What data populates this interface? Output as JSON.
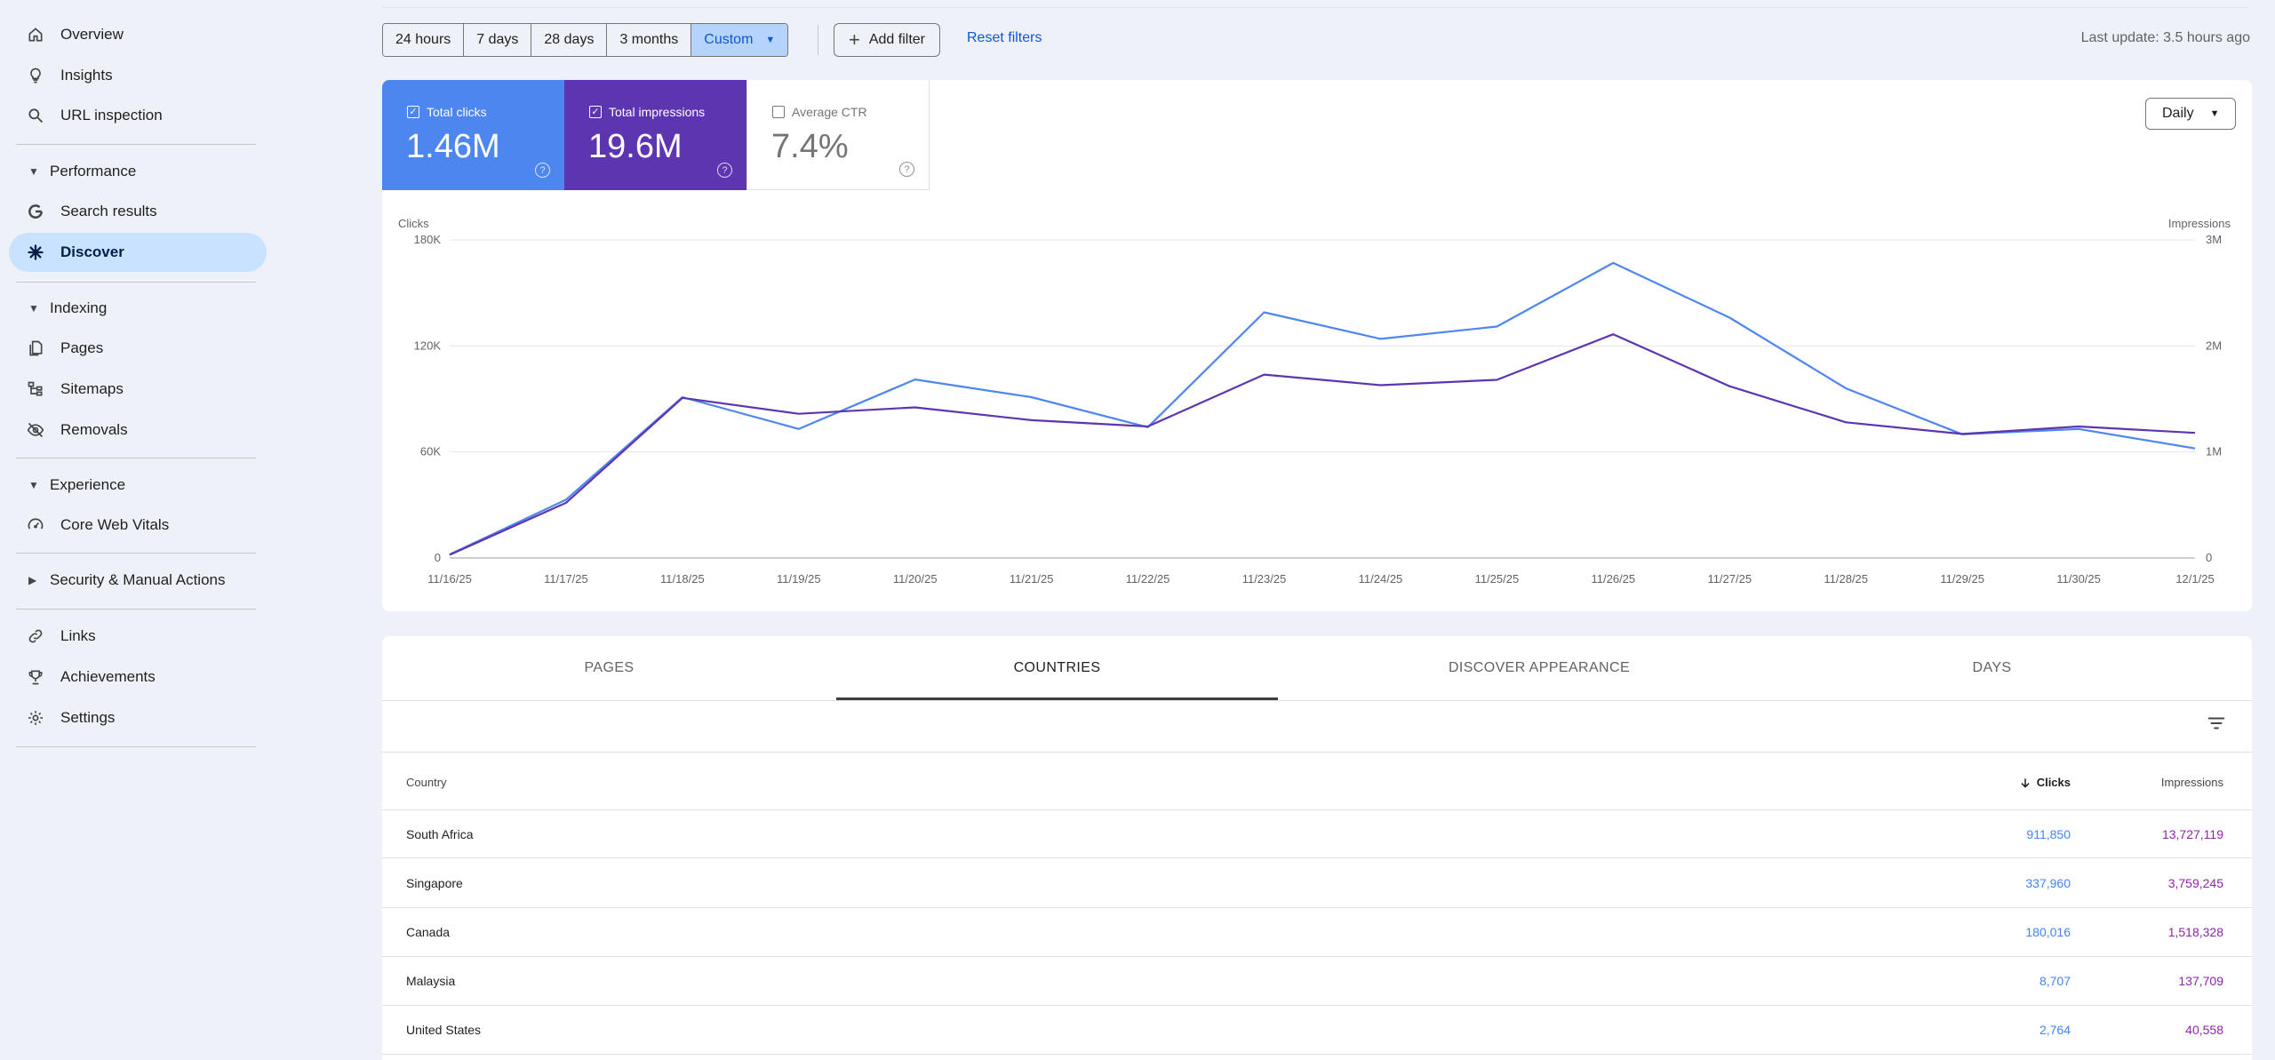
{
  "sidebar": {
    "items": [
      {
        "label": "Overview",
        "icon": "home-icon"
      },
      {
        "label": "Insights",
        "icon": "lightbulb-icon"
      },
      {
        "label": "URL inspection",
        "icon": "search-icon"
      }
    ],
    "performance": {
      "label": "Performance",
      "items": [
        {
          "label": "Search results",
          "icon": "google-g-icon"
        },
        {
          "label": "Discover",
          "icon": "asterisk-icon",
          "active": true
        }
      ]
    },
    "indexing": {
      "label": "Indexing",
      "items": [
        {
          "label": "Pages",
          "icon": "pages-icon"
        },
        {
          "label": "Sitemaps",
          "icon": "sitemap-icon"
        },
        {
          "label": "Removals",
          "icon": "eye-off-icon"
        }
      ]
    },
    "experience": {
      "label": "Experience",
      "items": [
        {
          "label": "Core Web Vitals",
          "icon": "gauge-icon"
        }
      ]
    },
    "security": {
      "label": "Security & Manual Actions"
    },
    "bottom": [
      {
        "label": "Links",
        "icon": "link-icon"
      },
      {
        "label": "Achievements",
        "icon": "trophy-icon"
      },
      {
        "label": "Settings",
        "icon": "gear-icon"
      }
    ]
  },
  "toolbar": {
    "ranges": [
      "24 hours",
      "7 days",
      "28 days",
      "3 months",
      "Custom"
    ],
    "selected_range": "Custom",
    "add_filter": "Add filter",
    "reset_filters": "Reset filters",
    "last_update": "Last update: 3.5 hours ago"
  },
  "metrics": {
    "clicks": {
      "label": "Total clicks",
      "value": "1.46M",
      "checked": true,
      "color": "#4e86f0"
    },
    "impressions": {
      "label": "Total impressions",
      "value": "19.6M",
      "checked": true,
      "color": "#5e35b1"
    },
    "ctr": {
      "label": "Average CTR",
      "value": "7.4%",
      "checked": false
    }
  },
  "granularity": "Daily",
  "chart_data": {
    "type": "line",
    "x": [
      "11/16/25",
      "11/17/25",
      "11/18/25",
      "11/19/25",
      "11/20/25",
      "11/21/25",
      "11/22/25",
      "11/23/25",
      "11/24/25",
      "11/25/25",
      "11/26/25",
      "11/27/25",
      "11/28/25",
      "11/29/25",
      "11/30/25",
      "12/1/25"
    ],
    "ylabel_left": "Clicks",
    "ylabel_right": "Impressions",
    "y_left_ticks": [
      "0",
      "60K",
      "120K",
      "180K"
    ],
    "y_right_ticks": [
      "0",
      "1M",
      "2M",
      "3M"
    ],
    "ylim_left": [
      0,
      180000
    ],
    "ylim_right": [
      0,
      3000000
    ],
    "grid": true,
    "series": [
      {
        "name": "Total clicks",
        "axis": "left",
        "color": "#4e86f0",
        "values": [
          2000,
          33000,
          91000,
          73000,
          101000,
          91000,
          74000,
          139000,
          124000,
          131000,
          167000,
          136000,
          96000,
          70000,
          73000,
          62000
        ]
      },
      {
        "name": "Total impressions",
        "axis": "right",
        "color": "#5e35b1",
        "values": [
          30000,
          520000,
          1510000,
          1360000,
          1420000,
          1300000,
          1240000,
          1730000,
          1630000,
          1680000,
          2110000,
          1620000,
          1280000,
          1170000,
          1240000,
          1180000
        ]
      }
    ]
  },
  "tabs": [
    "PAGES",
    "COUNTRIES",
    "DISCOVER APPEARANCE",
    "DAYS"
  ],
  "active_tab": "COUNTRIES",
  "table": {
    "headers": {
      "country": "Country",
      "clicks": "Clicks",
      "impressions": "Impressions"
    },
    "rows": [
      {
        "country": "South Africa",
        "clicks": "911,850",
        "impressions": "13,727,119"
      },
      {
        "country": "Singapore",
        "clicks": "337,960",
        "impressions": "3,759,245"
      },
      {
        "country": "Canada",
        "clicks": "180,016",
        "impressions": "1,518,328"
      },
      {
        "country": "Malaysia",
        "clicks": "8,707",
        "impressions": "137,709"
      },
      {
        "country": "United States",
        "clicks": "2,764",
        "impressions": "40,558"
      }
    ]
  }
}
